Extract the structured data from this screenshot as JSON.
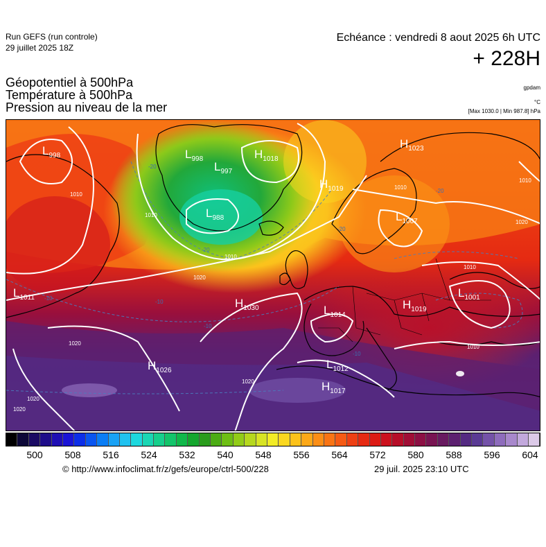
{
  "header": {
    "run_title": "Run GEFS (run controle)",
    "run_date": "29 juillet 2025 18Z",
    "echeance": "Echéance : vendredi 8 aout 2025 6h UTC",
    "lead_time": "+ 228H"
  },
  "parameters": [
    "Géopotentiel à 500hPa",
    "Température à 500hPa",
    "Pression au niveau de la mer"
  ],
  "units": {
    "geopotential": "gpdam",
    "temperature": "°C",
    "pressure_note": "[Max 1030.0 | Min 987.8] hPa"
  },
  "color_scale": {
    "ticks": [
      "500",
      "508",
      "516",
      "524",
      "532",
      "540",
      "548",
      "556",
      "564",
      "572",
      "580",
      "588",
      "596",
      "604"
    ],
    "colors": [
      "#000000",
      "#0d0838",
      "#1a0a63",
      "#1e0d8a",
      "#1f0fb4",
      "#1a14d6",
      "#0c2ee8",
      "#0a55f0",
      "#0a7df5",
      "#1aa2f5",
      "#20c2f0",
      "#1dd8de",
      "#1ad6b4",
      "#16cf8c",
      "#13c46a",
      "#10b84a",
      "#14a62e",
      "#2a9c1c",
      "#4cac14",
      "#6ebe14",
      "#92cc18",
      "#b6d81e",
      "#d8e424",
      "#f2ec26",
      "#fbd820",
      "#fcc21a",
      "#fca818",
      "#fb8e16",
      "#f97414",
      "#f55a14",
      "#ee4014",
      "#e62a12",
      "#dc1a14",
      "#cc121e",
      "#b60e28",
      "#a00e36",
      "#8c1044",
      "#781452",
      "#681a60",
      "#5c2070",
      "#542a82",
      "#5a3a94",
      "#7452a8",
      "#8e6cbc",
      "#a888cc",
      "#c2a8dc",
      "#dccae8"
    ]
  },
  "map": {
    "pressure_centers": [
      {
        "type": "L",
        "value": "998"
      },
      {
        "type": "L",
        "value": "998"
      },
      {
        "type": "L",
        "value": "997"
      },
      {
        "type": "H",
        "value": "1018"
      },
      {
        "type": "L",
        "value": "988"
      },
      {
        "type": "H",
        "value": "1019"
      },
      {
        "type": "H",
        "value": "1023"
      },
      {
        "type": "L",
        "value": "1007"
      },
      {
        "type": "L",
        "value": "1011"
      },
      {
        "type": "H",
        "value": "1030"
      },
      {
        "type": "L",
        "value": "1014"
      },
      {
        "type": "H",
        "value": "1019"
      },
      {
        "type": "L",
        "value": "1001"
      },
      {
        "type": "H",
        "value": "1026"
      },
      {
        "type": "L",
        "value": "1012"
      },
      {
        "type": "H",
        "value": "1017"
      }
    ],
    "isobar_labels": [
      "1010",
      "1010",
      "1010",
      "1020",
      "1020",
      "1020",
      "1020",
      "1010",
      "1020",
      "1010",
      "1010",
      "1010",
      "1020"
    ],
    "isotherm_labels": [
      "-20",
      "-20",
      "-10",
      "-20",
      "-10",
      "-10",
      "-10",
      "-20"
    ]
  },
  "footer": {
    "copyright": "© http://www.infoclimat.fr/z/gefs/europe/ctrl-500/228",
    "timestamp": "29 juil. 2025 23:10 UTC"
  }
}
